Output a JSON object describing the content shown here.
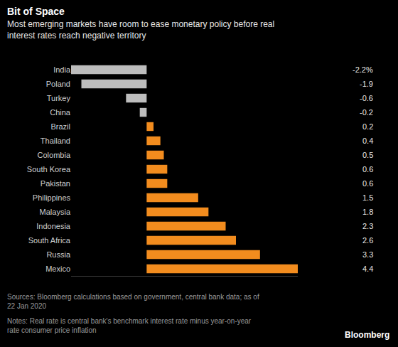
{
  "chart_data": {
    "type": "bar",
    "orientation": "horizontal",
    "title": "Bit of Space",
    "subtitle": "Most emerging markets have room to ease monetary policy before real interest rates reach negative territory",
    "categories": [
      "India",
      "Poland",
      "Turkey",
      "China",
      "Brazil",
      "Thailand",
      "Colombia",
      "South Korea",
      "Pakistan",
      "Philippines",
      "Malaysia",
      "Indonesia",
      "South Africa",
      "Russia",
      "Mexico"
    ],
    "values": [
      -2.2,
      -1.9,
      -0.6,
      -0.2,
      0.2,
      0.4,
      0.5,
      0.6,
      0.6,
      1.5,
      1.8,
      2.3,
      2.6,
      3.3,
      4.4
    ],
    "value_labels": [
      "-2.2%",
      "-1.9",
      "-0.6",
      "-0.2",
      "0.2",
      "0.4",
      "0.5",
      "0.6",
      "0.6",
      "1.5",
      "1.8",
      "2.3",
      "2.6",
      "3.3",
      "4.4"
    ],
    "colors": [
      "#bdbdbd",
      "#bdbdbd",
      "#bdbdbd",
      "#bdbdbd",
      "#f28c1e",
      "#f28c1e",
      "#f28c1e",
      "#f28c1e",
      "#f28c1e",
      "#f28c1e",
      "#f28c1e",
      "#f28c1e",
      "#f28c1e",
      "#f28c1e",
      "#f28c1e"
    ],
    "xlim": [
      -2.2,
      4.4
    ],
    "grid": false,
    "data_labels": true,
    "tick_labels": "y",
    "source": "Sources: Bloomberg calculations based on government, central bank data; as of 22 Jan 2020",
    "notes": "Notes: Real rate is central bank's benchmark interest rate minus year-on-year rate consumer price inflation",
    "credit": "Bloomberg"
  }
}
